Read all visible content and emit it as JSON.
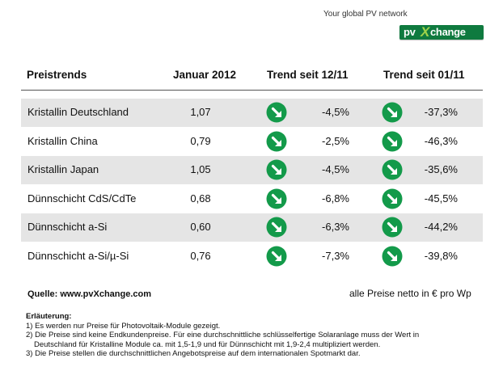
{
  "brand": {
    "tagline": "Your global PV network",
    "logo_pv": "pv",
    "logo_x": "X",
    "logo_rest": "change",
    "color": "#0f7a3f"
  },
  "table": {
    "headers": [
      "Preistrends",
      "Januar 2012",
      "Trend seit 12/11",
      "Trend seit 01/11"
    ],
    "trend_icon": "arrow-down-right-icon",
    "icon_color": "#139a4a",
    "rows": [
      {
        "name": "Kristallin Deutschland",
        "jan": "1,07",
        "t1": "-4,5%",
        "t2": "-37,3%"
      },
      {
        "name": "Kristallin China",
        "jan": "0,79",
        "t1": "-2,5%",
        "t2": "-46,3%"
      },
      {
        "name": "Kristallin Japan",
        "jan": "1,05",
        "t1": "-4,5%",
        "t2": "-35,6%"
      },
      {
        "name": "Dünnschicht CdS/CdTe",
        "jan": "0,68",
        "t1": "-6,8%",
        "t2": "-45,5%"
      },
      {
        "name": "Dünnschicht a-Si",
        "jan": "0,60",
        "t1": "-6,3%",
        "t2": "-44,2%"
      },
      {
        "name": "Dünnschicht a-Si/µ-Si",
        "jan": "0,76",
        "t1": "-7,3%",
        "t2": "-39,8%"
      }
    ]
  },
  "footer": {
    "source": "Quelle: www.pvXchange.com",
    "unit_note": "alle Preise netto in € pro Wp"
  },
  "notes": {
    "title": "Erläuterung:",
    "n1": "1) Es werden nur Preise für Photovoltaik-Module gezeigt.",
    "n2a": "2) Die Preise sind keine Endkundenpreise. Für eine durchschnittliche schlüsselfertige Solaranlage  muss der Wert in",
    "n2b": "Deutschland für Kristalline Module ca. mit 1,5-1,9 und für Dünnschicht mit 1,9-2,4 multipliziert werden.",
    "n3": "3) Die Preise stellen die durchschnittlichen Angebotspreise auf dem internationalen Spotmarkt dar."
  }
}
